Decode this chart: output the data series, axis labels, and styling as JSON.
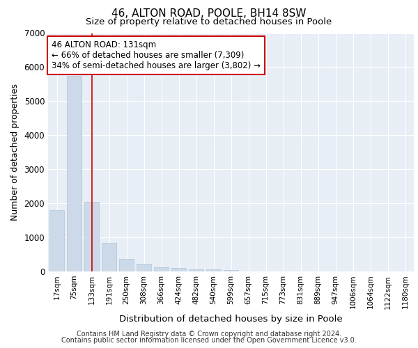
{
  "title1": "46, ALTON ROAD, POOLE, BH14 8SW",
  "title2": "Size of property relative to detached houses in Poole",
  "xlabel": "Distribution of detached houses by size in Poole",
  "ylabel": "Number of detached properties",
  "categories": [
    "17sqm",
    "75sqm",
    "133sqm",
    "191sqm",
    "250sqm",
    "308sqm",
    "366sqm",
    "424sqm",
    "482sqm",
    "540sqm",
    "599sqm",
    "657sqm",
    "715sqm",
    "773sqm",
    "831sqm",
    "889sqm",
    "947sqm",
    "1006sqm",
    "1064sqm",
    "1122sqm",
    "1180sqm"
  ],
  "values": [
    1800,
    5750,
    2050,
    830,
    375,
    235,
    130,
    95,
    70,
    55,
    45,
    0,
    0,
    0,
    0,
    0,
    0,
    0,
    0,
    0,
    0
  ],
  "bar_color": "#ccd9e8",
  "bar_edge_color": "#b0c4d8",
  "highlight_index": 2,
  "highlight_line_color": "#cc0000",
  "annotation_text": "46 ALTON ROAD: 131sqm\n← 66% of detached houses are smaller (7,309)\n34% of semi-detached houses are larger (3,802) →",
  "annotation_box_facecolor": "#ffffff",
  "annotation_border_color": "#cc0000",
  "ylim": [
    0,
    7000
  ],
  "yticks": [
    0,
    1000,
    2000,
    3000,
    4000,
    5000,
    6000,
    7000
  ],
  "bg_color": "#ffffff",
  "plot_bg_color": "#e8eef5",
  "grid_color": "#ffffff",
  "footer1": "Contains HM Land Registry data © Crown copyright and database right 2024.",
  "footer2": "Contains public sector information licensed under the Open Government Licence v3.0."
}
